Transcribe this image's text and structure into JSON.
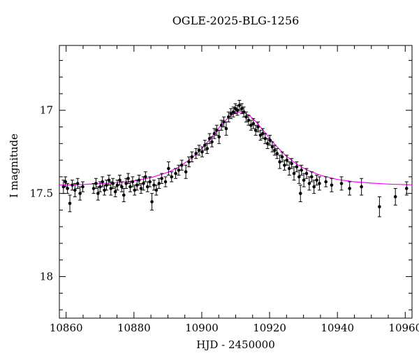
{
  "chart_data": {
    "type": "scatter",
    "title": "OGLE-2025-BLG-1256",
    "xlabel": "HJD - 2450000",
    "ylabel": "I magnitude",
    "xlim": [
      10858,
      10962
    ],
    "ylim": [
      16.61,
      18.25
    ],
    "y_axis_inverted": true,
    "x_major_ticks": [
      10860,
      10880,
      10900,
      10920,
      10940,
      10960
    ],
    "x_minor_step": 5,
    "y_major_ticks": [
      17,
      17.5,
      18
    ],
    "y_minor_step": 0.1,
    "grid": false,
    "legend": "none",
    "point_color": "#000000",
    "model_color": "#ff00ff",
    "frame_color": "#000000",
    "points": [
      [
        10859.2,
        17.46,
        0.04
      ],
      [
        10859.8,
        17.43,
        0.03
      ],
      [
        10860.4,
        17.47,
        0.03
      ],
      [
        10861.1,
        17.56,
        0.05
      ],
      [
        10861.8,
        17.45,
        0.03
      ],
      [
        10862.6,
        17.48,
        0.04
      ],
      [
        10863.4,
        17.44,
        0.03
      ],
      [
        10864.1,
        17.5,
        0.04
      ],
      [
        10864.9,
        17.46,
        0.03
      ],
      [
        10868.1,
        17.47,
        0.03
      ],
      [
        10868.8,
        17.44,
        0.03
      ],
      [
        10869.4,
        17.5,
        0.04
      ],
      [
        10870.0,
        17.46,
        0.03
      ],
      [
        10870.7,
        17.43,
        0.03
      ],
      [
        10871.3,
        17.48,
        0.03
      ],
      [
        10871.9,
        17.45,
        0.03
      ],
      [
        10872.6,
        17.42,
        0.03
      ],
      [
        10873.2,
        17.47,
        0.04
      ],
      [
        10873.8,
        17.44,
        0.03
      ],
      [
        10874.5,
        17.49,
        0.03
      ],
      [
        10875.1,
        17.45,
        0.03
      ],
      [
        10875.8,
        17.42,
        0.03
      ],
      [
        10876.4,
        17.46,
        0.03
      ],
      [
        10877.0,
        17.51,
        0.04
      ],
      [
        10877.7,
        17.44,
        0.03
      ],
      [
        10878.3,
        17.41,
        0.03
      ],
      [
        10878.9,
        17.46,
        0.03
      ],
      [
        10879.6,
        17.43,
        0.03
      ],
      [
        10880.2,
        17.48,
        0.03
      ],
      [
        10880.9,
        17.45,
        0.03
      ],
      [
        10881.5,
        17.42,
        0.03
      ],
      [
        10882.1,
        17.47,
        0.03
      ],
      [
        10882.8,
        17.44,
        0.04
      ],
      [
        10883.4,
        17.4,
        0.03
      ],
      [
        10884.0,
        17.46,
        0.03
      ],
      [
        10884.7,
        17.43,
        0.03
      ],
      [
        10885.3,
        17.55,
        0.05
      ],
      [
        10885.9,
        17.45,
        0.03
      ],
      [
        10886.6,
        17.48,
        0.03
      ],
      [
        10887.4,
        17.44,
        0.03
      ],
      [
        10888.2,
        17.41,
        0.03
      ],
      [
        10889.3,
        17.43,
        0.03
      ],
      [
        10890.2,
        17.35,
        0.04
      ],
      [
        10891.1,
        17.4,
        0.03
      ],
      [
        10892.3,
        17.38,
        0.03
      ],
      [
        10893.2,
        17.36,
        0.03
      ],
      [
        10894.1,
        17.33,
        0.03
      ],
      [
        10895.3,
        17.37,
        0.04
      ],
      [
        10896.2,
        17.31,
        0.03
      ],
      [
        10897.1,
        17.28,
        0.03
      ],
      [
        10898.3,
        17.26,
        0.03
      ],
      [
        10899.2,
        17.24,
        0.03
      ],
      [
        10900.1,
        17.25,
        0.03
      ],
      [
        10900.9,
        17.21,
        0.03
      ],
      [
        10901.6,
        17.23,
        0.03
      ],
      [
        10902.3,
        17.17,
        0.03
      ],
      [
        10903.0,
        17.19,
        0.03
      ],
      [
        10903.7,
        17.14,
        0.03
      ],
      [
        10904.4,
        17.12,
        0.03
      ],
      [
        10905.1,
        17.16,
        0.04
      ],
      [
        10905.8,
        17.09,
        0.03
      ],
      [
        10906.5,
        17.07,
        0.03
      ],
      [
        10907.2,
        17.11,
        0.04
      ],
      [
        10907.9,
        17.04,
        0.03
      ],
      [
        10908.6,
        17.02,
        0.03
      ],
      [
        10909.3,
        17.01,
        0.03
      ],
      [
        10909.9,
        16.99,
        0.03
      ],
      [
        10910.5,
        17.0,
        0.03
      ],
      [
        10911.1,
        16.97,
        0.03
      ],
      [
        10911.8,
        16.99,
        0.03
      ],
      [
        10912.4,
        17.01,
        0.03
      ],
      [
        10913.1,
        17.04,
        0.03
      ],
      [
        10913.8,
        17.06,
        0.03
      ],
      [
        10914.5,
        17.09,
        0.03
      ],
      [
        10915.2,
        17.08,
        0.03
      ],
      [
        10915.9,
        17.12,
        0.03
      ],
      [
        10916.6,
        17.1,
        0.03
      ],
      [
        10917.3,
        17.15,
        0.03
      ],
      [
        10918.0,
        17.14,
        0.03
      ],
      [
        10918.7,
        17.17,
        0.03
      ],
      [
        10919.4,
        17.2,
        0.03
      ],
      [
        10920.1,
        17.18,
        0.03
      ],
      [
        10920.8,
        17.22,
        0.03
      ],
      [
        10921.5,
        17.24,
        0.03
      ],
      [
        10922.2,
        17.26,
        0.03
      ],
      [
        10923.0,
        17.31,
        0.04
      ],
      [
        10923.7,
        17.28,
        0.03
      ],
      [
        10924.4,
        17.33,
        0.03
      ],
      [
        10925.1,
        17.3,
        0.03
      ],
      [
        10925.8,
        17.35,
        0.04
      ],
      [
        10926.5,
        17.32,
        0.03
      ],
      [
        10927.2,
        17.38,
        0.04
      ],
      [
        10928.0,
        17.34,
        0.03
      ],
      [
        10928.7,
        17.4,
        0.04
      ],
      [
        10929.1,
        17.5,
        0.05
      ],
      [
        10929.4,
        17.36,
        0.03
      ],
      [
        10930.1,
        17.42,
        0.04
      ],
      [
        10930.9,
        17.38,
        0.03
      ],
      [
        10931.7,
        17.44,
        0.04
      ],
      [
        10932.4,
        17.4,
        0.03
      ],
      [
        10933.1,
        17.46,
        0.04
      ],
      [
        10933.9,
        17.42,
        0.03
      ],
      [
        10934.7,
        17.44,
        0.04
      ],
      [
        10936.6,
        17.43,
        0.03
      ],
      [
        10938.3,
        17.45,
        0.04
      ],
      [
        10941.2,
        17.44,
        0.04
      ],
      [
        10943.6,
        17.47,
        0.04
      ],
      [
        10947.1,
        17.46,
        0.05
      ],
      [
        10952.4,
        17.58,
        0.06
      ],
      [
        10957.1,
        17.52,
        0.05
      ],
      [
        10960.4,
        17.47,
        0.04
      ]
    ],
    "model": [
      [
        10858,
        17.449
      ],
      [
        10860,
        17.449
      ],
      [
        10865,
        17.446
      ],
      [
        10870,
        17.441
      ],
      [
        10875,
        17.435
      ],
      [
        10880,
        17.424
      ],
      [
        10885,
        17.405
      ],
      [
        10890,
        17.373
      ],
      [
        10893,
        17.344
      ],
      [
        10896,
        17.303
      ],
      [
        10898,
        17.27
      ],
      [
        10900,
        17.229
      ],
      [
        10902,
        17.183
      ],
      [
        10904,
        17.132
      ],
      [
        10906,
        17.082
      ],
      [
        10908,
        17.04
      ],
      [
        10910,
        17.014
      ],
      [
        10911.3,
        17.009
      ],
      [
        10912,
        17.01
      ],
      [
        10914,
        17.03
      ],
      [
        10916,
        17.069
      ],
      [
        10918,
        17.117
      ],
      [
        10920,
        17.168
      ],
      [
        10922,
        17.216
      ],
      [
        10925,
        17.277
      ],
      [
        10928,
        17.324
      ],
      [
        10931,
        17.359
      ],
      [
        10935,
        17.391
      ],
      [
        10940,
        17.416
      ],
      [
        10945,
        17.43
      ],
      [
        10950,
        17.438
      ],
      [
        10955,
        17.444
      ],
      [
        10962,
        17.448
      ]
    ]
  }
}
